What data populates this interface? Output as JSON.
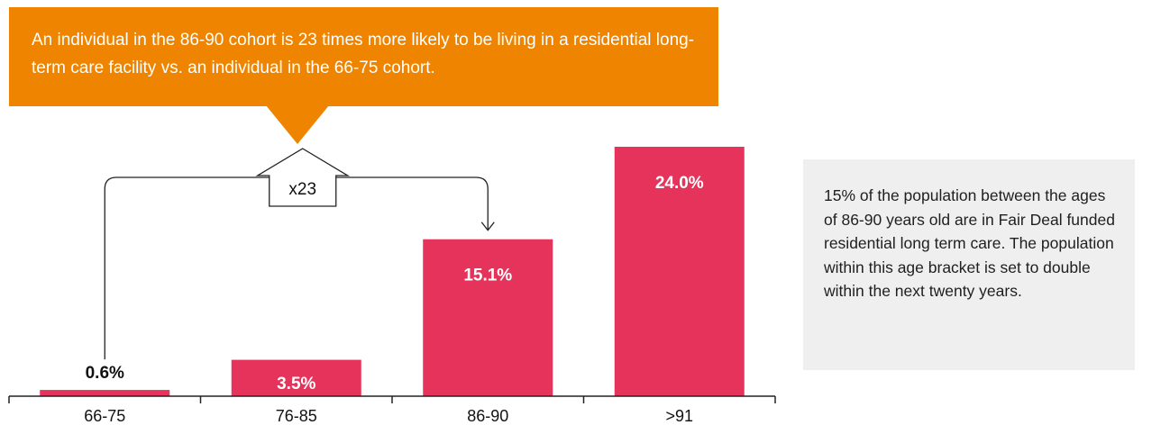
{
  "callout": {
    "text": "An individual in the 86-90 cohort is 23 times more likely to be living in a residential long-term care facility vs. an individual in the 66-75 cohort."
  },
  "comparison": {
    "label": "x23",
    "from": "66-75",
    "to": "86-90"
  },
  "note": {
    "text": "15% of the population between the ages of 86-90 years old are in Fair Deal funded residential long term care. The population within this age bracket is set to double within the next twenty years."
  },
  "colors": {
    "bar": "#e5335b",
    "callout": "#ee8400",
    "note_bg": "#efefef"
  },
  "chart_data": {
    "type": "bar",
    "categories": [
      "66-75",
      "76-85",
      "86-90",
      ">91"
    ],
    "values": [
      0.6,
      3.5,
      15.1,
      24.0
    ],
    "data_labels": [
      "0.6%",
      "3.5%",
      "15.1%",
      "24.0%"
    ],
    "title": "",
    "xlabel": "",
    "ylabel": "",
    "ylim": [
      0,
      24.0
    ],
    "grid": false,
    "legend": "none"
  }
}
